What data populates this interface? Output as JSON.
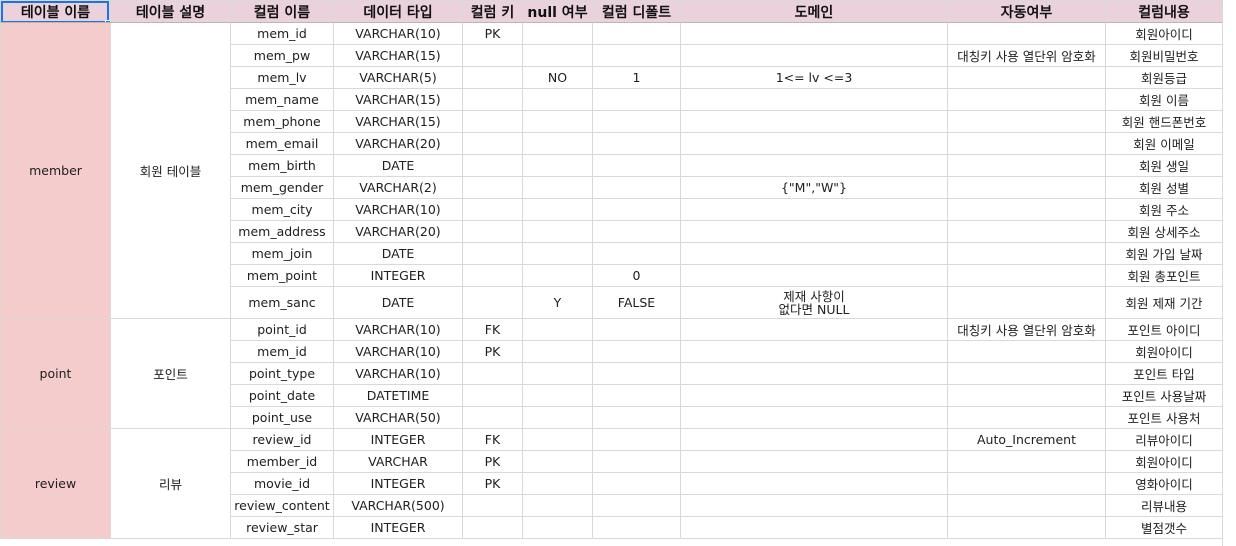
{
  "header": {
    "table_name": "테이블 이름",
    "table_desc": "테이블 설명",
    "column_name": "컬럼 이름",
    "data_type": "데이터 타입",
    "column_key": "컬럼 키",
    "nullable": "null 여부",
    "column_default": "컬럼 디폴트",
    "domain": "도메인",
    "auto": "자동여부",
    "content": "컬럼내용"
  },
  "groups": {
    "member": {
      "name": "member",
      "desc": "회원 테이블",
      "rows": [
        {
          "col": "mem_id",
          "type": "VARCHAR(10)",
          "key": "PK",
          "nul": "",
          "def": "",
          "dom": "",
          "auto": "",
          "content": "회원아이디"
        },
        {
          "col": "mem_pw",
          "type": "VARCHAR(15)",
          "key": "",
          "nul": "",
          "def": "",
          "dom": "",
          "auto": "대칭키 사용 열단위 암호화",
          "content": "회원비밀번호"
        },
        {
          "col": "mem_lv",
          "type": "VARCHAR(5)",
          "key": "",
          "nul": "NO",
          "def": "1",
          "dom": "1<= lv <=3",
          "auto": "",
          "content": "회원등급"
        },
        {
          "col": "mem_name",
          "type": "VARCHAR(15)",
          "key": "",
          "nul": "",
          "def": "",
          "dom": "",
          "auto": "",
          "content": "회원 이름"
        },
        {
          "col": "mem_phone",
          "type": "VARCHAR(15)",
          "key": "",
          "nul": "",
          "def": "",
          "dom": "",
          "auto": "",
          "content": "회원 핸드폰번호"
        },
        {
          "col": "mem_email",
          "type": "VARCHAR(20)",
          "key": "",
          "nul": "",
          "def": "",
          "dom": "",
          "auto": "",
          "content": "회원 이메일"
        },
        {
          "col": "mem_birth",
          "type": "DATE",
          "key": "",
          "nul": "",
          "def": "",
          "dom": "",
          "auto": "",
          "content": "회원 생일"
        },
        {
          "col": "mem_gender",
          "type": "VARCHAR(2)",
          "key": "",
          "nul": "",
          "def": "",
          "dom": "{\"M\",\"W\"}",
          "auto": "",
          "content": "회원 성별"
        },
        {
          "col": "mem_city",
          "type": "VARCHAR(10)",
          "key": "",
          "nul": "",
          "def": "",
          "dom": "",
          "auto": "",
          "content": "회원 주소"
        },
        {
          "col": "mem_address",
          "type": "VARCHAR(20)",
          "key": "",
          "nul": "",
          "def": "",
          "dom": "",
          "auto": "",
          "content": "회원 상세주소"
        },
        {
          "col": "mem_join",
          "type": "DATE",
          "key": "",
          "nul": "",
          "def": "",
          "dom": "",
          "auto": "",
          "content": "회원 가입 날짜"
        },
        {
          "col": "mem_point",
          "type": "INTEGER",
          "key": "",
          "nul": "",
          "def": "0",
          "dom": "",
          "auto": "",
          "content": "회원 총포인트"
        },
        {
          "col": "mem_sanc",
          "type": "DATE",
          "key": "",
          "nul": "Y",
          "def": "FALSE",
          "dom": "제재 사항이\n없다면 NULL",
          "auto": "",
          "content": "회원 제재 기간"
        }
      ]
    },
    "point": {
      "name": "point",
      "desc": "포인트",
      "rows": [
        {
          "col": "point_id",
          "type": "VARCHAR(10)",
          "key": "FK",
          "nul": "",
          "def": "",
          "dom": "",
          "auto": "대칭키 사용 열단위 암호화",
          "content": "포인트 아이디"
        },
        {
          "col": "mem_id",
          "type": "VARCHAR(10)",
          "key": "PK",
          "nul": "",
          "def": "",
          "dom": "",
          "auto": "",
          "content": "회원아이디"
        },
        {
          "col": "point_type",
          "type": "VARCHAR(10)",
          "key": "",
          "nul": "",
          "def": "",
          "dom": "",
          "auto": "",
          "content": "포인트 타입"
        },
        {
          "col": "point_date",
          "type": "DATETIME",
          "key": "",
          "nul": "",
          "def": "",
          "dom": "",
          "auto": "",
          "content": "포인트 사용날짜"
        },
        {
          "col": "point_use",
          "type": "VARCHAR(50)",
          "key": "",
          "nul": "",
          "def": "",
          "dom": "",
          "auto": "",
          "content": "포인트 사용처"
        }
      ]
    },
    "review": {
      "name": "review",
      "desc": "리뷰",
      "rows": [
        {
          "col": "review_id",
          "type": "INTEGER",
          "key": "FK",
          "nul": "",
          "def": "",
          "dom": "",
          "auto": "Auto_Increment",
          "content": "리뷰아이디"
        },
        {
          "col": "member_id",
          "type": "VARCHAR",
          "key": "PK",
          "nul": "",
          "def": "",
          "dom": "",
          "auto": "",
          "content": "회원아이디"
        },
        {
          "col": "movie_id",
          "type": "INTEGER",
          "key": "PK",
          "nul": "",
          "def": "",
          "dom": "",
          "auto": "",
          "content": "영화아이디"
        },
        {
          "col": "review_content",
          "type": "VARCHAR(500)",
          "key": "",
          "nul": "",
          "def": "",
          "dom": "",
          "auto": "",
          "content": "리뷰내용"
        },
        {
          "col": "review_star",
          "type": "INTEGER",
          "key": "",
          "nul": "",
          "def": "",
          "dom": "",
          "auto": "",
          "content": "별점갯수"
        }
      ]
    }
  },
  "colors": {
    "header_bg": "#ead1dc",
    "table_name_bg": "#f4cccc",
    "selection": "#1a73e8"
  }
}
